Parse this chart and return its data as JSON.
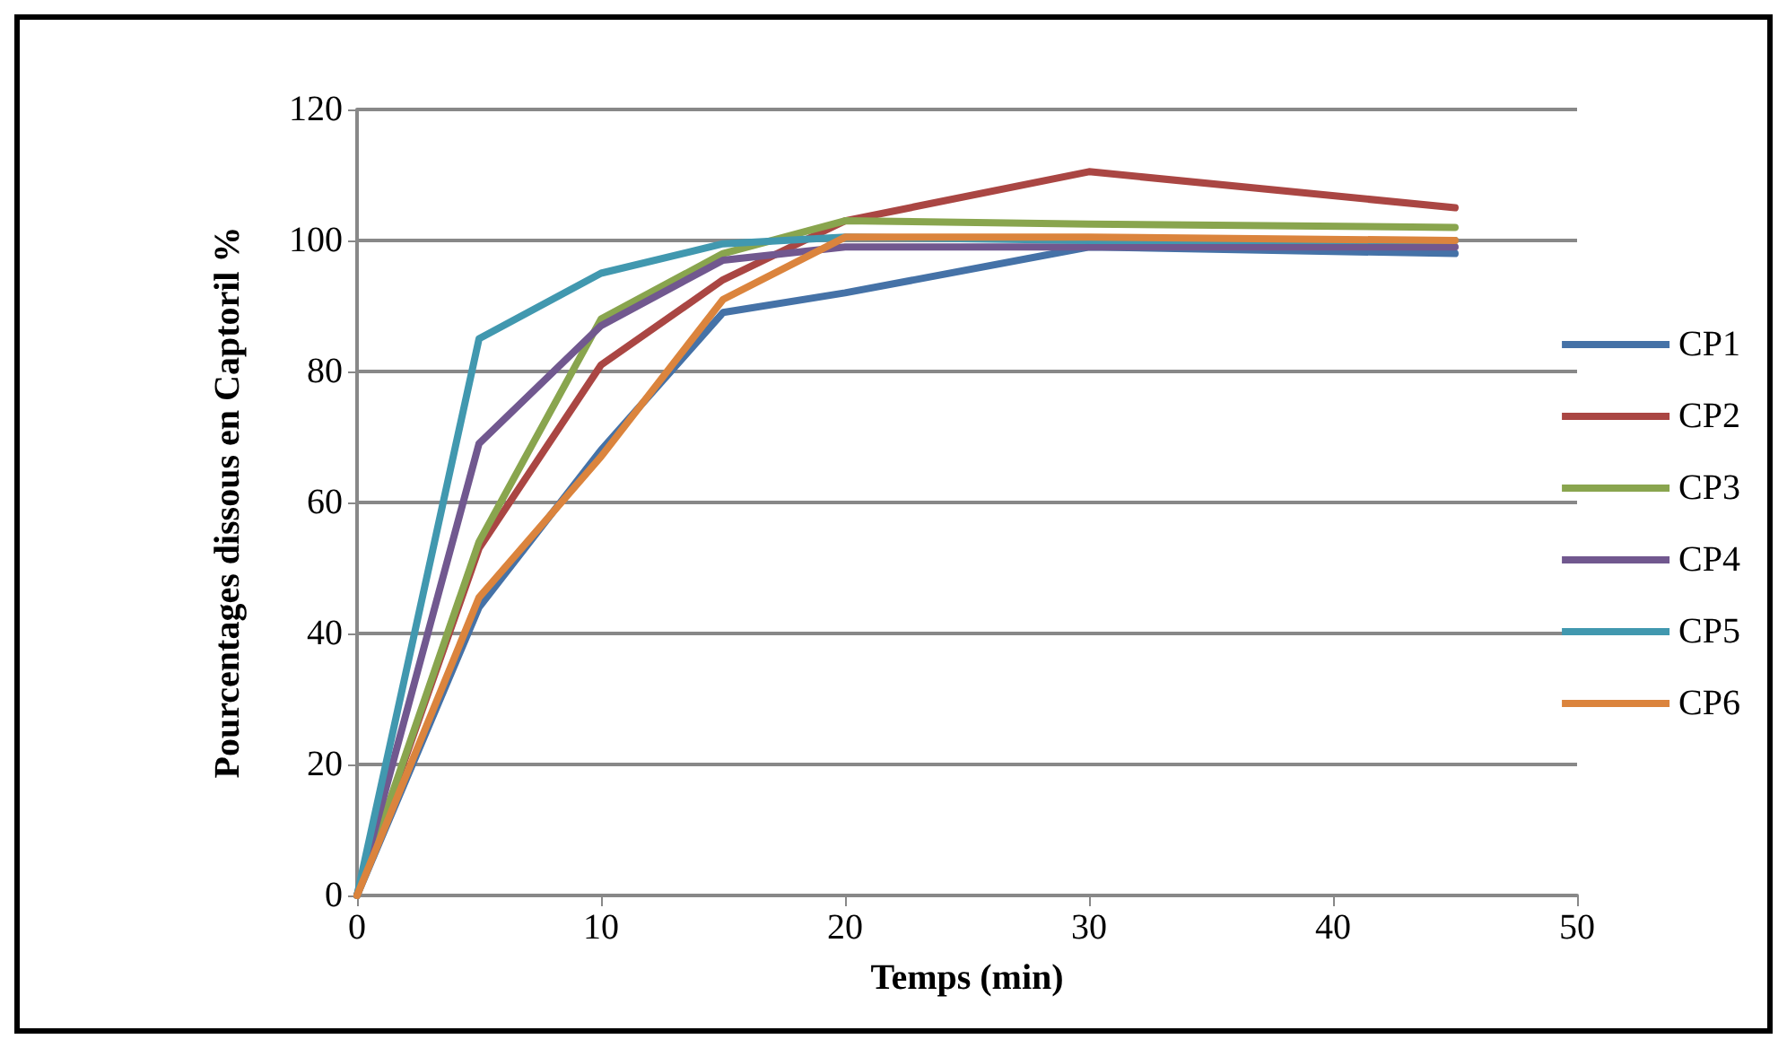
{
  "chart_data": {
    "type": "line",
    "xlabel": "Temps (min)",
    "ylabel": "Pourcentages dissous en Captoril %",
    "x": [
      0,
      5,
      10,
      15,
      20,
      30,
      45
    ],
    "series": [
      {
        "name": "CP1",
        "color": "#4572a7",
        "values": [
          0,
          44,
          68,
          89,
          92,
          99,
          98
        ]
      },
      {
        "name": "CP2",
        "color": "#aa4643",
        "values": [
          0,
          53,
          81,
          94,
          103,
          110.5,
          105
        ]
      },
      {
        "name": "CP3",
        "color": "#89a54e",
        "values": [
          0,
          54,
          88,
          98,
          103,
          102.5,
          102
        ]
      },
      {
        "name": "CP4",
        "color": "#71588f",
        "values": [
          0,
          69,
          87,
          97,
          99,
          99,
          99
        ]
      },
      {
        "name": "CP5",
        "color": "#4198af",
        "values": [
          0,
          85,
          95,
          99.5,
          100.5,
          100,
          100
        ]
      },
      {
        "name": "CP6",
        "color": "#db843d",
        "values": [
          0,
          45.5,
          67,
          91,
          100.5,
          100.5,
          100
        ]
      }
    ],
    "xlim": [
      0,
      50
    ],
    "xticks": [
      0,
      10,
      20,
      30,
      40,
      50
    ],
    "ylim": [
      0,
      120
    ],
    "yticks": [
      0,
      20,
      40,
      60,
      80,
      100,
      120
    ],
    "grid": "y",
    "legend": "right",
    "marker": "none",
    "line_style": "solid"
  }
}
